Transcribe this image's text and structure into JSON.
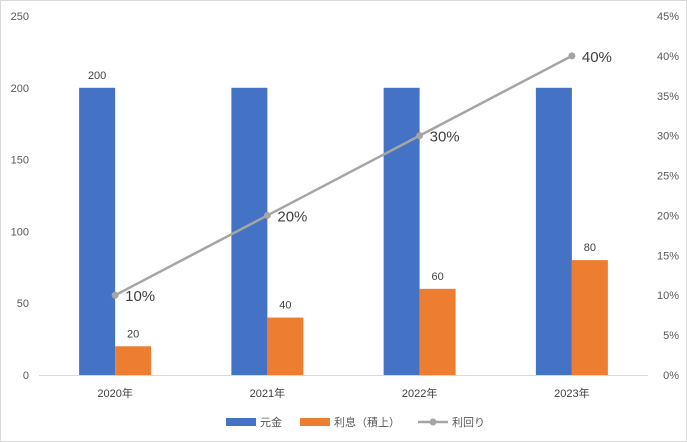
{
  "chart_data": {
    "type": "bar",
    "categories": [
      "2020年",
      "2021年",
      "2022年",
      "2023年"
    ],
    "series": [
      {
        "name": "元金",
        "type": "bar",
        "axis": "left",
        "color": "#4472c4",
        "values": [
          200,
          200,
          200,
          200
        ]
      },
      {
        "name": "利息（積上）",
        "type": "bar",
        "axis": "left",
        "color": "#ed7d31",
        "values": [
          20,
          40,
          60,
          80
        ]
      },
      {
        "name": "利回り",
        "type": "line",
        "axis": "right",
        "color": "#a5a5a5",
        "values": [
          0.1,
          0.2,
          0.3,
          0.4
        ]
      }
    ],
    "bar_data_labels": {
      "元金": [
        "200",
        "",
        "",
        ""
      ],
      "利息（積上）": [
        "20",
        "40",
        "60",
        "80"
      ]
    },
    "line_data_labels": [
      "10%",
      "20%",
      "30%",
      "40%"
    ],
    "highlight_label_color": "#ff0000",
    "highlight_index": 3,
    "y_left": {
      "ylim": [
        0,
        250
      ],
      "ticks": [
        "0",
        "50",
        "100",
        "150",
        "200",
        "250"
      ]
    },
    "y_right": {
      "ylim": [
        0,
        0.45
      ],
      "ticks": [
        "0%",
        "5%",
        "10%",
        "15%",
        "20%",
        "25%",
        "30%",
        "35%",
        "40%",
        "45%"
      ]
    },
    "grid": false,
    "legend_position": "bottom",
    "title": "",
    "xlabel": "",
    "ylabel": ""
  }
}
